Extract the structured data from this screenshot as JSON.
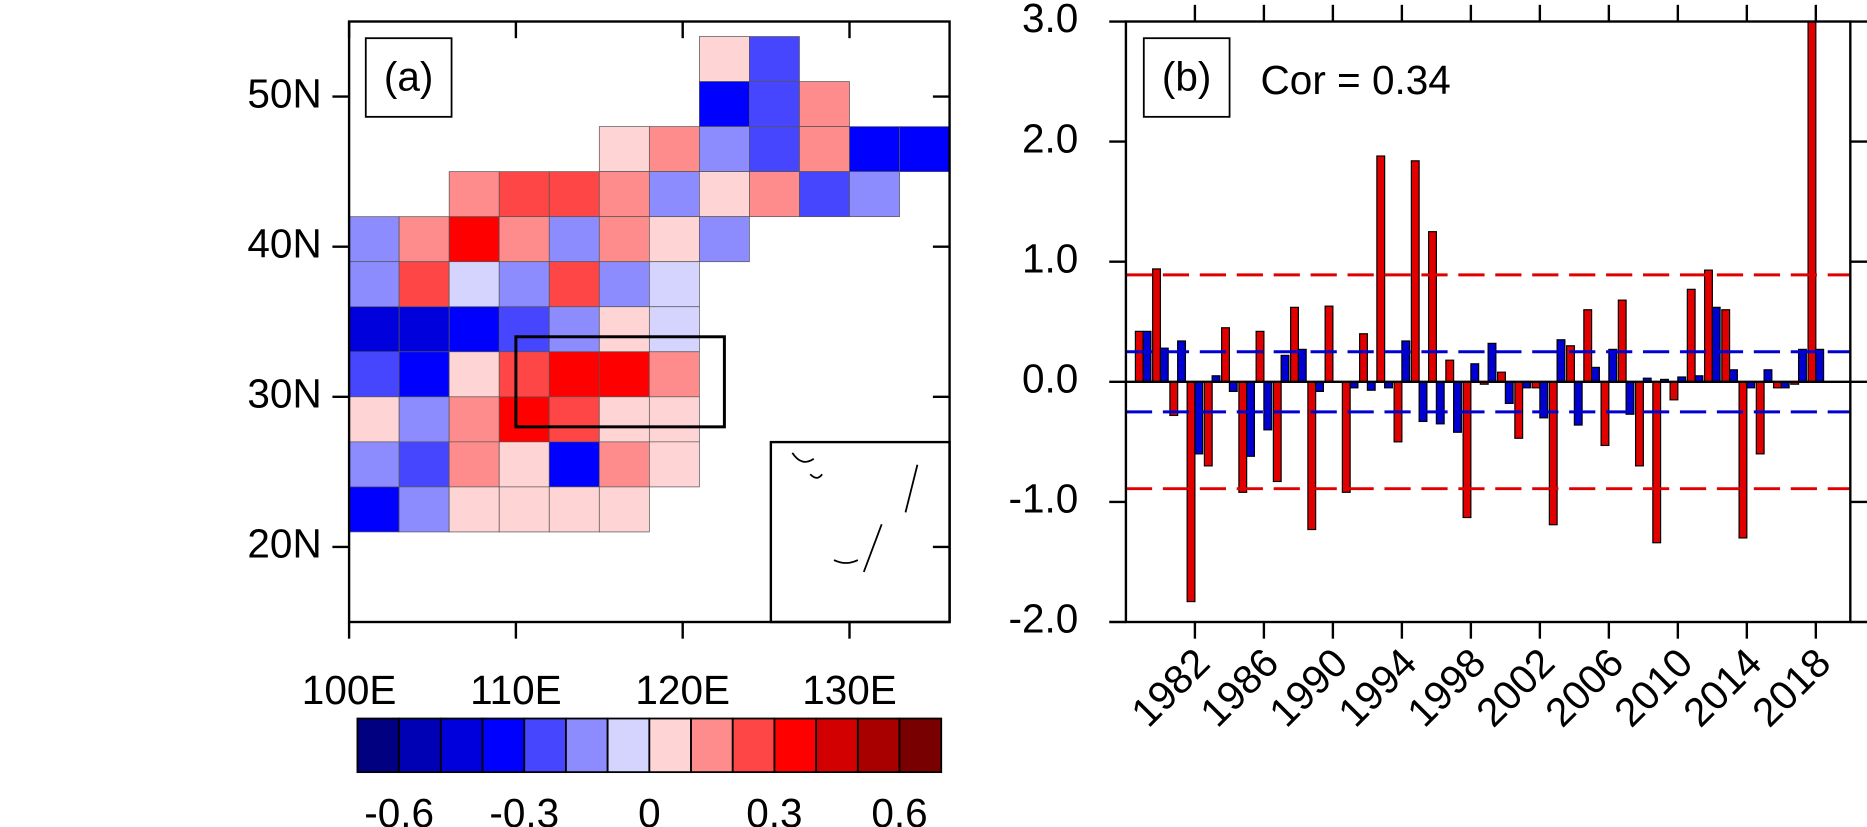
{
  "chart_data": [
    {
      "type": "map",
      "panel_label": "(a)",
      "xlim": [
        100,
        136
      ],
      "ylim": [
        15,
        55
      ],
      "xticks": [
        {
          "value": 100,
          "label": "100E"
        },
        {
          "value": 110,
          "label": "110E"
        },
        {
          "value": 120,
          "label": "120E"
        },
        {
          "value": 130,
          "label": "130E"
        }
      ],
      "yticks": [
        {
          "value": 20,
          "label": "20N"
        },
        {
          "value": 30,
          "label": "30N"
        },
        {
          "value": 40,
          "label": "40N"
        },
        {
          "value": 50,
          "label": "50N"
        }
      ],
      "lon": [
        101.5,
        104.5,
        107.5,
        110.5,
        113.5,
        116.5,
        119.5,
        122.5,
        125.5,
        128.5,
        131.5,
        134.5
      ],
      "lat": [
        52.5,
        49.5,
        46.5,
        43.5,
        40.5,
        37.5,
        34.5,
        31.5,
        28.5,
        25.5,
        22.5
      ],
      "values": [
        [
          null,
          null,
          null,
          null,
          null,
          null,
          null,
          0.1,
          -0.2,
          null,
          null,
          null
        ],
        [
          null,
          null,
          null,
          null,
          null,
          null,
          null,
          -0.3,
          -0.25,
          0.2,
          null,
          null
        ],
        [
          null,
          null,
          null,
          null,
          null,
          0.05,
          0.15,
          -0.1,
          -0.2,
          0.15,
          -0.3,
          -0.35
        ],
        [
          null,
          null,
          0.2,
          0.25,
          0.3,
          0.15,
          -0.1,
          0.05,
          0.2,
          -0.2,
          -0.1,
          null
        ],
        [
          -0.15,
          0.2,
          0.4,
          0.2,
          -0.1,
          0.15,
          0.05,
          -0.1,
          null,
          null,
          null,
          null
        ],
        [
          -0.1,
          0.3,
          -0.05,
          -0.15,
          0.3,
          -0.1,
          0.0,
          null,
          null,
          null,
          null,
          null
        ],
        [
          -0.45,
          -0.4,
          -0.35,
          -0.2,
          -0.1,
          0.05,
          0.0,
          null,
          null,
          null,
          null,
          null
        ],
        [
          -0.2,
          -0.35,
          0.1,
          0.3,
          0.35,
          0.4,
          0.2,
          null,
          null,
          null,
          null,
          null
        ],
        [
          0.1,
          -0.1,
          0.15,
          0.35,
          0.3,
          0.1,
          0.05,
          null,
          null,
          null,
          null,
          null
        ],
        [
          -0.1,
          -0.25,
          0.2,
          0.1,
          -0.3,
          0.2,
          0.1,
          null,
          null,
          null,
          null,
          null
        ],
        [
          -0.3,
          -0.1,
          0.1,
          0.05,
          0.05,
          0.1,
          null,
          null,
          null,
          null,
          null,
          null
        ]
      ],
      "region_box": {
        "lon": [
          110,
          122.5
        ],
        "lat": [
          28,
          34
        ]
      },
      "colorbar": {
        "levels": [
          -0.6,
          -0.5,
          -0.4,
          -0.3,
          -0.2,
          -0.1,
          0,
          0.1,
          0.2,
          0.3,
          0.4,
          0.5,
          0.6
        ],
        "colors": [
          "#000080",
          "#0000b4",
          "#0000dc",
          "#0000ff",
          "#4646ff",
          "#8c8cff",
          "#d4d4ff",
          "#ffd4d4",
          "#ff8c8c",
          "#ff4646",
          "#ff0000",
          "#d20000",
          "#a80000",
          "#780000"
        ],
        "ticks": [
          -0.6,
          -0.3,
          0,
          0.3,
          0.6
        ]
      }
    },
    {
      "type": "bar",
      "panel_label": "(b)",
      "annotation": "Cor = 0.34",
      "x": [
        1979,
        1980,
        1981,
        1982,
        1983,
        1984,
        1985,
        1986,
        1987,
        1988,
        1989,
        1990,
        1991,
        1992,
        1993,
        1994,
        1995,
        1996,
        1997,
        1998,
        1999,
        2000,
        2001,
        2002,
        2003,
        2004,
        2005,
        2006,
        2007,
        2008,
        2009,
        2010,
        2011,
        2012,
        2013,
        2014,
        2015,
        2016,
        2017,
        2018
      ],
      "series": [
        {
          "color": "#e00000",
          "values": [
            0.42,
            0.94,
            -0.28,
            -1.83,
            -0.7,
            0.45,
            -0.92,
            0.42,
            -0.83,
            0.62,
            -1.23,
            0.63,
            -0.92,
            0.4,
            1.88,
            -0.5,
            1.84,
            1.25,
            0.18,
            -1.13,
            -0.02,
            0.08,
            -0.47,
            -0.05,
            -1.19,
            0.3,
            0.6,
            -0.53,
            0.68,
            -0.7,
            -1.34,
            -0.15,
            0.77,
            0.93,
            0.6,
            -1.3,
            -0.6,
            -0.05,
            -0.02,
            3.0
          ]
        },
        {
          "color": "#0000d0",
          "values": [
            0.42,
            0.28,
            0.34,
            -0.6,
            0.05,
            -0.08,
            -0.62,
            -0.4,
            0.22,
            0.27,
            -0.08,
            0.0,
            -0.05,
            -0.07,
            -0.05,
            0.34,
            -0.33,
            -0.35,
            -0.42,
            0.15,
            0.32,
            -0.18,
            -0.05,
            -0.3,
            0.35,
            -0.36,
            0.12,
            0.27,
            -0.27,
            0.03,
            0.02,
            0.04,
            0.05,
            0.62,
            0.1,
            -0.05,
            0.1,
            -0.05,
            0.27,
            0.27
          ]
        }
      ],
      "xlim": [
        1978,
        2020
      ],
      "xticks": [
        1982,
        1986,
        1990,
        1994,
        1998,
        2002,
        2006,
        2010,
        2014,
        2018
      ],
      "ylim": [
        -2,
        3
      ],
      "yticks": [
        {
          "value": -2,
          "label": "-2.0"
        },
        {
          "value": -1,
          "label": "-1.0"
        },
        {
          "value": 0,
          "label": "0.0"
        },
        {
          "value": 1,
          "label": "1.0"
        },
        {
          "value": 2,
          "label": "2.0"
        },
        {
          "value": 3,
          "label": "3.0"
        }
      ],
      "reference_lines": [
        {
          "value": 0.89,
          "color": "#e00000"
        },
        {
          "value": -0.89,
          "color": "#e00000"
        },
        {
          "value": 0.25,
          "color": "#0000d0"
        },
        {
          "value": -0.25,
          "color": "#0000d0"
        }
      ]
    }
  ]
}
